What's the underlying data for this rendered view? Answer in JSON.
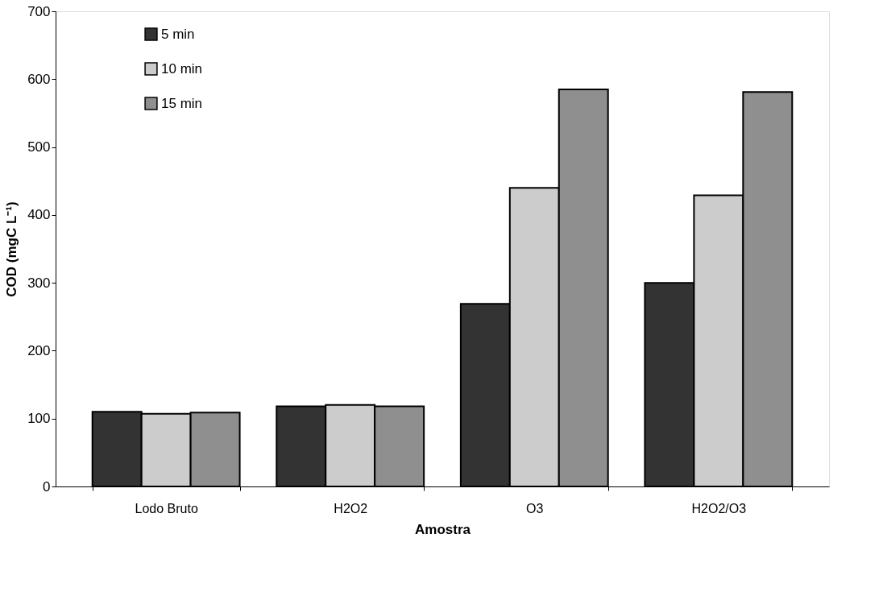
{
  "chart_data": {
    "type": "bar",
    "xlabel": "Amostra",
    "ylabel": "COD (mgC L⁻¹)",
    "categories": [
      "Lodo Bruto",
      "H2O2",
      "O3",
      "H2O2/O3"
    ],
    "series": [
      {
        "name": " 5 min",
        "color": "#333333",
        "values": [
          110,
          118,
          269,
          300
        ]
      },
      {
        "name": "10 min",
        "color": "#cccccc",
        "values": [
          107,
          120,
          440,
          429
        ]
      },
      {
        "name": "15 min",
        "color": "#8f8f8f",
        "values": [
          109,
          118,
          585,
          581
        ]
      }
    ],
    "ylim": [
      0,
      700
    ],
    "yticks": [
      0,
      100,
      200,
      300,
      400,
      500,
      600,
      700
    ],
    "grid": false,
    "legend": "top left"
  }
}
